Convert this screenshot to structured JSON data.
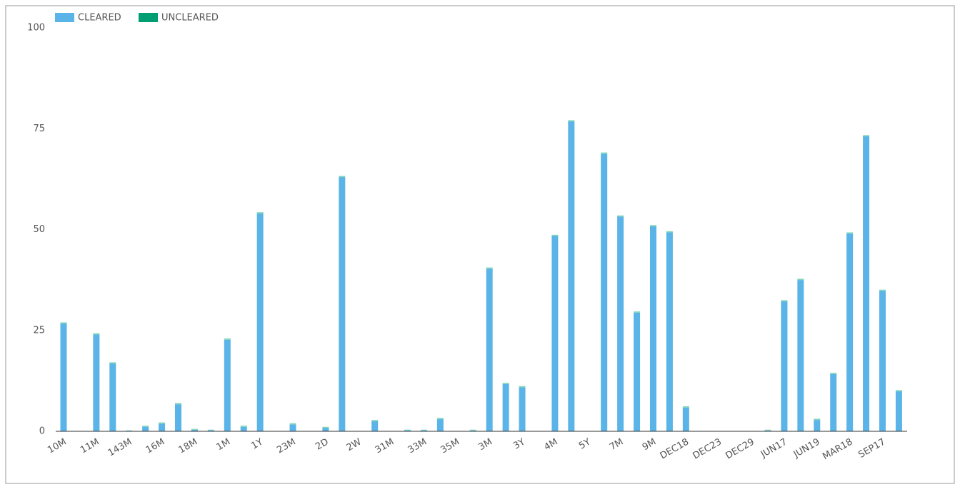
{
  "chart_data": {
    "type": "stacked-bar",
    "categories": [
      "10M",
      null,
      "11M",
      null,
      "143M",
      null,
      "16M",
      null,
      "18M",
      null,
      "1M",
      null,
      "1Y",
      null,
      "23M",
      null,
      "2D",
      null,
      "2W",
      null,
      "31M",
      null,
      "33M",
      null,
      "35M",
      null,
      "3M",
      null,
      "3Y",
      null,
      "4M",
      null,
      "5Y",
      null,
      "7M",
      null,
      "9M",
      null,
      "DEC18",
      null,
      "DEC23",
      null,
      "DEC29",
      null,
      "JUN17",
      null,
      "JUN19",
      null,
      "MAR18",
      null,
      "SEP17",
      null
    ],
    "series": [
      {
        "name": "CLEARED",
        "color": "#5ab4e8",
        "values": [
          26.7,
          0.1,
          24.0,
          16.8,
          0.2,
          1.1,
          1.9,
          6.7,
          0.4,
          0.3,
          22.7,
          1.1,
          54.0,
          0,
          1.7,
          0,
          0.8,
          63.0,
          0,
          2.5,
          0.1,
          0.3,
          0.3,
          3.0,
          0,
          0.2,
          40.3,
          11.7,
          10.9,
          0,
          48.4,
          76.8,
          0,
          68.8,
          53.2,
          29.4,
          50.8,
          49.3,
          5.9,
          0.1,
          0,
          0,
          0,
          0.2,
          32.2,
          37.5,
          2.8,
          14.2,
          49.0,
          73.1,
          34.8,
          9.9
        ]
      },
      {
        "name": "UNCLEARED",
        "color": "#009e73",
        "values": [
          0.3,
          0,
          0.3,
          0.3,
          0,
          0.3,
          0.3,
          0.3,
          0.2,
          0.1,
          0.3,
          0.3,
          0.3,
          0,
          0.3,
          0,
          0.3,
          0.3,
          0,
          0.3,
          0,
          0.1,
          0.1,
          0.3,
          0,
          0.2,
          0.3,
          0.3,
          0.3,
          0,
          0.3,
          0.3,
          0,
          0.3,
          0.3,
          0.3,
          0.3,
          0.3,
          0.3,
          0,
          0,
          0,
          0,
          0.2,
          0.3,
          0.3,
          0.3,
          0.3,
          0.3,
          0.3,
          0.3,
          0.3
        ]
      }
    ],
    "ylim": [
      0,
      100
    ],
    "yticks": [
      0,
      25,
      50,
      75,
      100
    ],
    "grid": false
  }
}
